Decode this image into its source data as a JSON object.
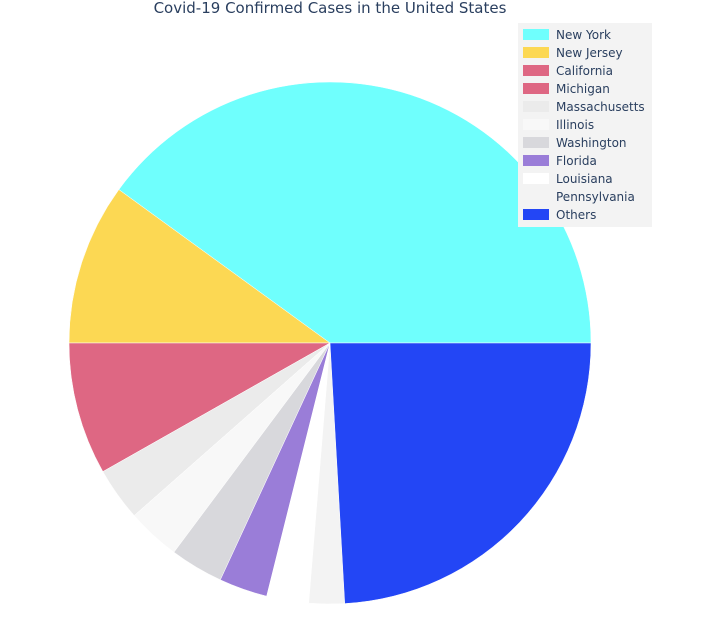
{
  "chart_data": {
    "type": "pie",
    "title": "Covid-19 Confirmed Cases in the United States",
    "legend_position": "top-right",
    "slices": [
      {
        "label": "New York",
        "value": 40.0,
        "color": "#6ffffd"
      },
      {
        "label": "New Jersey",
        "value": 10.0,
        "color": "#fcd853"
      },
      {
        "label": "California",
        "value": 8.2,
        "color": "#de6783"
      },
      {
        "label": "Michigan",
        "value": 0.0,
        "color": "#de6783"
      },
      {
        "label": "Massachusetts",
        "value": 3.3,
        "color": "#ebebeb"
      },
      {
        "label": "Illinois",
        "value": 3.3,
        "color": "#f8f8f8"
      },
      {
        "label": "Washington",
        "value": 3.3,
        "color": "#d8d8dc"
      },
      {
        "label": "Florida",
        "value": 3.0,
        "color": "#9a7dd8"
      },
      {
        "label": "Louisiana",
        "value": 2.6,
        "color": "#ffffff"
      },
      {
        "label": "Pennsylvania",
        "value": 2.2,
        "color": "#f3f3f3"
      },
      {
        "label": "Others",
        "value": 24.1,
        "color": "#2346f5"
      }
    ]
  }
}
